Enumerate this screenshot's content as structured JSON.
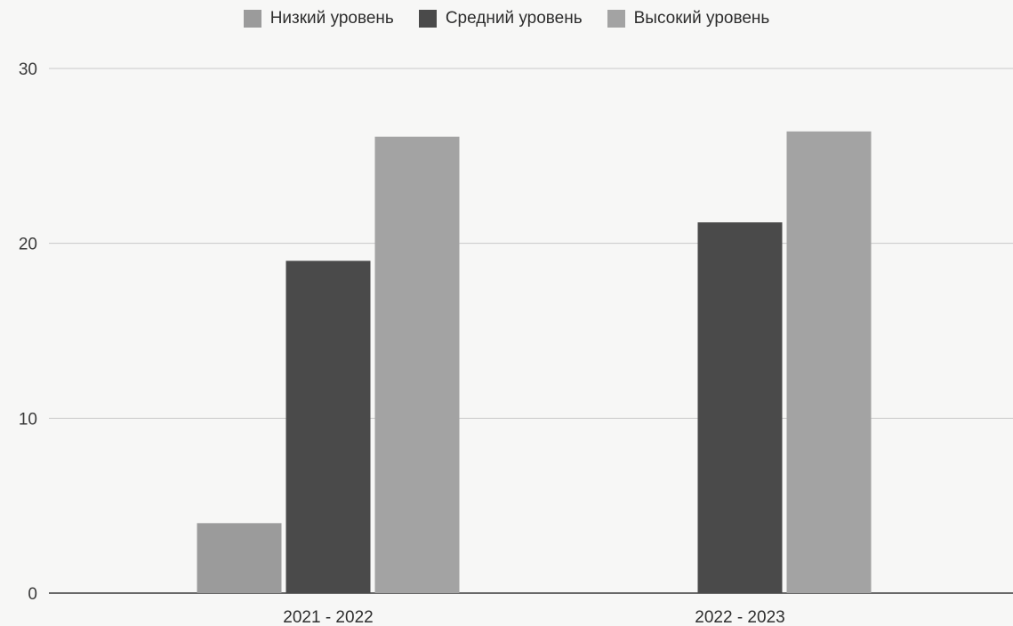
{
  "chart_data": {
    "type": "bar",
    "title": "",
    "xlabel": "",
    "ylabel": "",
    "categories": [
      "2021 - 2022",
      "2022 - 2023"
    ],
    "series": [
      {
        "name": "Низкий уровень",
        "values": [
          4,
          0
        ],
        "color": "#9b9b9b"
      },
      {
        "name": "Средний уровень",
        "values": [
          19,
          21.2
        ],
        "color": "#4a4a4a"
      },
      {
        "name": "Высокий уровень",
        "values": [
          26.1,
          26.4
        ],
        "color": "#a3a3a3"
      }
    ],
    "ylim": [
      0,
      30
    ],
    "yticks": [
      0,
      10,
      20,
      30
    ],
    "ytick_labels": [
      "0",
      "10",
      "20",
      "30"
    ],
    "grid": true,
    "legend_position": "top"
  }
}
